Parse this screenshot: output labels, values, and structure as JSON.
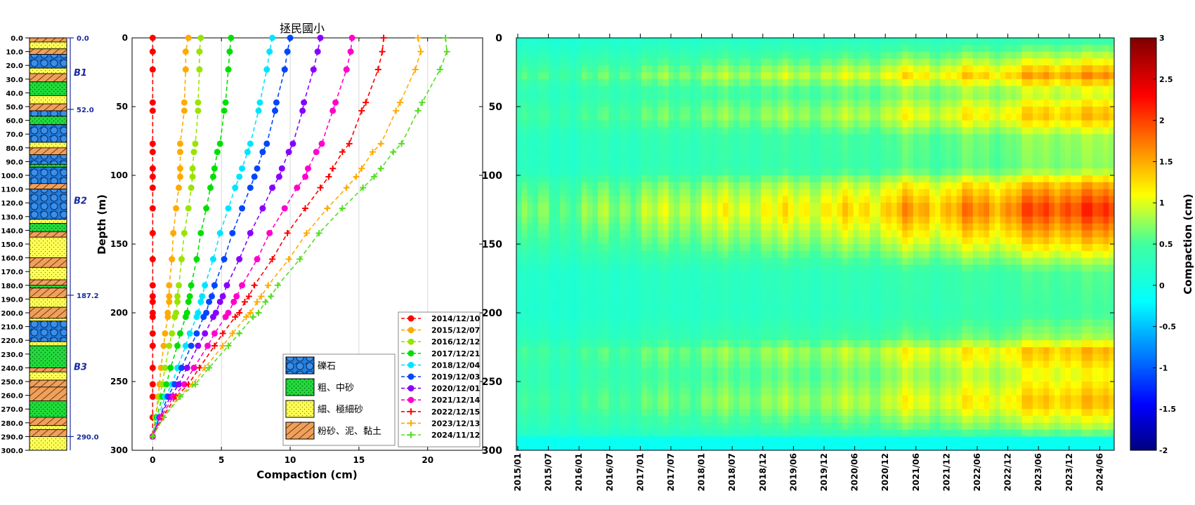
{
  "chart_data": [
    {
      "type": "strip-log",
      "title": "",
      "depth_ticks": [
        "0.0",
        "10.0",
        "20.0",
        "30.0",
        "40.0",
        "50.0",
        "60.0",
        "70.0",
        "80.0",
        "90.0",
        "100.0",
        "110.0",
        "120.0",
        "130.0",
        "140.0",
        "150.0",
        "160.0",
        "170.0",
        "180.0",
        "190.0",
        "200.0",
        "210.0",
        "220.0",
        "230.0",
        "240.0",
        "250.0",
        "260.0",
        "270.0",
        "280.0",
        "290.0",
        "300.0"
      ],
      "ylim": [
        0,
        300
      ],
      "boundaries": [
        {
          "depth": 0,
          "label": "0.0"
        },
        {
          "depth": 52,
          "label": "52.0"
        },
        {
          "depth": 187.2,
          "label": "187.2"
        },
        {
          "depth": 290,
          "label": "290.0"
        }
      ],
      "units": [
        {
          "label": "B1",
          "depth": 25
        },
        {
          "label": "B2",
          "depth": 118
        },
        {
          "label": "B3",
          "depth": 239
        }
      ],
      "layers": [
        {
          "top": 0,
          "bottom": 3,
          "lith": "silt"
        },
        {
          "top": 3,
          "bottom": 8,
          "lith": "fine"
        },
        {
          "top": 8,
          "bottom": 12,
          "lith": "silt"
        },
        {
          "top": 12,
          "bottom": 22,
          "lith": "gravel"
        },
        {
          "top": 22,
          "bottom": 26,
          "lith": "fine"
        },
        {
          "top": 26,
          "bottom": 32,
          "lith": "silt"
        },
        {
          "top": 32,
          "bottom": 42,
          "lith": "coarse"
        },
        {
          "top": 42,
          "bottom": 48,
          "lith": "fine"
        },
        {
          "top": 48,
          "bottom": 53,
          "lith": "silt"
        },
        {
          "top": 53,
          "bottom": 57,
          "lith": "gravel"
        },
        {
          "top": 57,
          "bottom": 63,
          "lith": "coarse"
        },
        {
          "top": 63,
          "bottom": 76,
          "lith": "gravel"
        },
        {
          "top": 76,
          "bottom": 80,
          "lith": "fine"
        },
        {
          "top": 80,
          "bottom": 85,
          "lith": "silt"
        },
        {
          "top": 85,
          "bottom": 92,
          "lith": "gravel"
        },
        {
          "top": 92,
          "bottom": 94,
          "lith": "coarse"
        },
        {
          "top": 94,
          "bottom": 106,
          "lith": "gravel"
        },
        {
          "top": 106,
          "bottom": 110,
          "lith": "silt"
        },
        {
          "top": 110,
          "bottom": 132,
          "lith": "gravel"
        },
        {
          "top": 132,
          "bottom": 135,
          "lith": "fine"
        },
        {
          "top": 135,
          "bottom": 141,
          "lith": "coarse"
        },
        {
          "top": 141,
          "bottom": 145,
          "lith": "silt"
        },
        {
          "top": 145,
          "bottom": 160,
          "lith": "fine"
        },
        {
          "top": 160,
          "bottom": 167,
          "lith": "silt"
        },
        {
          "top": 167,
          "bottom": 176,
          "lith": "fine"
        },
        {
          "top": 176,
          "bottom": 180,
          "lith": "silt"
        },
        {
          "top": 180,
          "bottom": 182,
          "lith": "coarse"
        },
        {
          "top": 182,
          "bottom": 189,
          "lith": "silt"
        },
        {
          "top": 189,
          "bottom": 196,
          "lith": "fine"
        },
        {
          "top": 196,
          "bottom": 204,
          "lith": "silt"
        },
        {
          "top": 204,
          "bottom": 206,
          "lith": "fine"
        },
        {
          "top": 206,
          "bottom": 221,
          "lith": "gravel"
        },
        {
          "top": 221,
          "bottom": 224,
          "lith": "fine"
        },
        {
          "top": 224,
          "bottom": 240,
          "lith": "coarse"
        },
        {
          "top": 240,
          "bottom": 243,
          "lith": "silt"
        },
        {
          "top": 243,
          "bottom": 249,
          "lith": "fine"
        },
        {
          "top": 249,
          "bottom": 254,
          "lith": "silt"
        },
        {
          "top": 254,
          "bottom": 264,
          "lith": "silt"
        },
        {
          "top": 264,
          "bottom": 276,
          "lith": "coarse"
        },
        {
          "top": 276,
          "bottom": 282,
          "lith": "silt"
        },
        {
          "top": 282,
          "bottom": 285,
          "lith": "fine"
        },
        {
          "top": 285,
          "bottom": 290,
          "lith": "silt"
        },
        {
          "top": 290,
          "bottom": 300,
          "lith": "fine"
        }
      ]
    },
    {
      "type": "line",
      "title": "拯民國小",
      "xlabel": "Compaction (cm)",
      "ylabel": "Depth (m)",
      "xlim": [
        -1.5,
        24
      ],
      "ylim": [
        0,
        300
      ],
      "x_ticks": [
        0,
        5,
        10,
        15,
        20
      ],
      "y_ticks": [
        0,
        50,
        100,
        150,
        200,
        250,
        300
      ],
      "grid": true,
      "depths": [
        0,
        10,
        23,
        47,
        53,
        77,
        83,
        95,
        101,
        109,
        124,
        142,
        161,
        180,
        188,
        192,
        200,
        203,
        215,
        224,
        240,
        252,
        261,
        276,
        290
      ],
      "series": [
        {
          "name": "2014/12/10",
          "color": "#ff0000",
          "marker": "dot",
          "values": [
            0,
            0,
            0,
            0,
            0,
            0,
            0,
            0,
            0,
            0,
            0,
            0,
            0,
            0,
            0,
            0,
            0,
            0,
            0,
            0,
            0,
            0,
            0,
            0,
            0
          ]
        },
        {
          "name": "2015/12/07",
          "color": "#ffaa00",
          "marker": "dot",
          "values": [
            2.6,
            2.4,
            2.4,
            2.3,
            2.3,
            2.0,
            2.0,
            2.0,
            2.0,
            1.9,
            1.7,
            1.5,
            1.4,
            1.2,
            1.2,
            1.2,
            1.1,
            1.1,
            0.9,
            0.8,
            0.6,
            0.5,
            0.4,
            0.2,
            0
          ]
        },
        {
          "name": "2016/12/12",
          "color": "#99e400",
          "marker": "dot",
          "values": [
            3.5,
            3.4,
            3.4,
            3.3,
            3.3,
            3.1,
            3.0,
            2.9,
            2.9,
            2.8,
            2.6,
            2.3,
            2.1,
            1.9,
            1.8,
            1.8,
            1.7,
            1.6,
            1.4,
            1.2,
            0.9,
            0.7,
            0.5,
            0.2,
            0
          ]
        },
        {
          "name": "2017/12/21",
          "color": "#00e000",
          "marker": "dot",
          "values": [
            5.7,
            5.6,
            5.5,
            5.3,
            5.2,
            4.9,
            4.7,
            4.5,
            4.4,
            4.2,
            3.9,
            3.5,
            3.2,
            2.8,
            2.7,
            2.6,
            2.5,
            2.4,
            2.0,
            1.8,
            1.3,
            1.0,
            0.7,
            0.3,
            0
          ]
        },
        {
          "name": "2018/12/04",
          "color": "#00e5ff",
          "marker": "dot",
          "values": [
            8.7,
            8.5,
            8.3,
            7.8,
            7.7,
            7.1,
            6.9,
            6.5,
            6.3,
            6.0,
            5.5,
            4.9,
            4.4,
            3.8,
            3.6,
            3.5,
            3.3,
            3.2,
            2.7,
            2.4,
            1.8,
            1.4,
            0.9,
            0.4,
            0
          ]
        },
        {
          "name": "2019/12/03",
          "color": "#0046ff",
          "marker": "dot",
          "values": [
            10.0,
            9.8,
            9.6,
            9.0,
            8.9,
            8.3,
            8.0,
            7.6,
            7.4,
            7.1,
            6.5,
            5.8,
            5.2,
            4.5,
            4.3,
            4.1,
            3.9,
            3.7,
            3.2,
            2.8,
            2.1,
            1.6,
            1.1,
            0.5,
            0
          ]
        },
        {
          "name": "2020/12/01",
          "color": "#8800ff",
          "marker": "dot",
          "values": [
            12.2,
            12.0,
            11.7,
            11.0,
            10.9,
            10.2,
            9.9,
            9.4,
            9.2,
            8.7,
            8.0,
            7.1,
            6.3,
            5.4,
            5.1,
            4.9,
            4.6,
            4.4,
            3.8,
            3.3,
            2.5,
            1.9,
            1.3,
            0.5,
            0
          ]
        },
        {
          "name": "2021/12/14",
          "color": "#ff00cc",
          "marker": "dot",
          "values": [
            14.5,
            14.4,
            14.1,
            13.3,
            13.1,
            12.3,
            11.9,
            11.3,
            11.1,
            10.5,
            9.6,
            8.5,
            7.6,
            6.5,
            6.1,
            5.9,
            5.5,
            5.3,
            4.5,
            4.0,
            3.0,
            2.3,
            1.5,
            0.6,
            0
          ]
        },
        {
          "name": "2022/12/15",
          "color": "#ff0000",
          "marker": "plus",
          "values": [
            16.8,
            16.7,
            16.4,
            15.5,
            15.2,
            14.3,
            13.8,
            13.1,
            12.8,
            12.2,
            11.1,
            9.8,
            8.7,
            7.4,
            7.0,
            6.7,
            6.3,
            6.0,
            5.1,
            4.5,
            3.4,
            2.6,
            1.7,
            0.7,
            0
          ]
        },
        {
          "name": "2023/12/13",
          "color": "#ffaa00",
          "marker": "plus",
          "values": [
            19.3,
            19.5,
            19.1,
            18.0,
            17.7,
            16.6,
            16.0,
            15.2,
            14.8,
            14.1,
            12.7,
            11.2,
            9.9,
            8.4,
            7.9,
            7.6,
            7.1,
            6.8,
            5.8,
            5.1,
            3.8,
            2.9,
            1.9,
            0.8,
            0
          ]
        },
        {
          "name": "2024/11/12",
          "color": "#55dd22",
          "marker": "plus",
          "values": [
            21.3,
            21.4,
            20.9,
            19.6,
            19.3,
            18.1,
            17.5,
            16.6,
            16.1,
            15.3,
            13.8,
            12.1,
            10.7,
            9.1,
            8.6,
            8.2,
            7.7,
            7.3,
            6.3,
            5.5,
            4.1,
            3.1,
            2.0,
            0.8,
            0
          ]
        }
      ],
      "lithology_legend": [
        "礫石",
        "粗、中砂",
        "細、極細砂",
        "粉砂、泥、黏土"
      ]
    },
    {
      "type": "heatmap",
      "title": "",
      "xlabel": "",
      "ylabel": "",
      "x_ticks": [
        "2015/01",
        "2015/07",
        "2016/01",
        "2016/07",
        "2017/01",
        "2017/07",
        "2018/01",
        "2018/07",
        "2018/12",
        "2019/06",
        "2019/12",
        "2020/06",
        "2020/12",
        "2021/06",
        "2021/12",
        "2022/06",
        "2022/12",
        "2023/06",
        "2023/12",
        "2024/06"
      ],
      "y_ticks": [
        0,
        50,
        100,
        150,
        200,
        250,
        300
      ],
      "ylim": [
        0,
        300
      ],
      "colorbar": {
        "label": "Compaction (cm)",
        "min": -2,
        "max": 3,
        "ticks": [
          "3",
          "2.5",
          "2",
          "1.5",
          "1",
          "0.5",
          "0",
          "-0.5",
          "-1",
          "-1.5",
          "-2"
        ]
      },
      "time_profile": [
        {
          "date": "2015/01",
          "value": 0.2
        },
        {
          "date": "2016/01",
          "value": 0.25
        },
        {
          "date": "2017/01",
          "value": 0.4
        },
        {
          "date": "2018/01",
          "value": 0.5
        },
        {
          "date": "2019/01",
          "value": 0.6
        },
        {
          "date": "2020/01",
          "value": 0.65
        },
        {
          "date": "2021/01",
          "value": 0.75
        },
        {
          "date": "2021/06",
          "value": 0.95
        },
        {
          "date": "2022/01",
          "value": 0.85
        },
        {
          "date": "2022/06",
          "value": 1.05
        },
        {
          "date": "2023/01",
          "value": 1.0
        },
        {
          "date": "2023/06",
          "value": 1.25
        },
        {
          "date": "2024/06",
          "value": 1.35
        },
        {
          "date": "2024/11",
          "value": 1.3
        }
      ],
      "depth_profile": [
        {
          "depth": 0,
          "value": 0.2
        },
        {
          "depth": 15,
          "value": 0.6
        },
        {
          "depth": 27,
          "value": 1.0
        },
        {
          "depth": 40,
          "value": 0.55
        },
        {
          "depth": 56,
          "value": 0.9
        },
        {
          "depth": 72,
          "value": 0.5
        },
        {
          "depth": 95,
          "value": 0.45
        },
        {
          "depth": 108,
          "value": 0.95
        },
        {
          "depth": 125,
          "value": 1.3
        },
        {
          "depth": 148,
          "value": 0.85
        },
        {
          "depth": 170,
          "value": 0.35
        },
        {
          "depth": 200,
          "value": 0.3
        },
        {
          "depth": 218,
          "value": 0.5
        },
        {
          "depth": 228,
          "value": 0.9
        },
        {
          "depth": 245,
          "value": 0.65
        },
        {
          "depth": 265,
          "value": 0.9
        },
        {
          "depth": 282,
          "value": 0.55
        },
        {
          "depth": 300,
          "value": 0.0
        }
      ]
    }
  ]
}
